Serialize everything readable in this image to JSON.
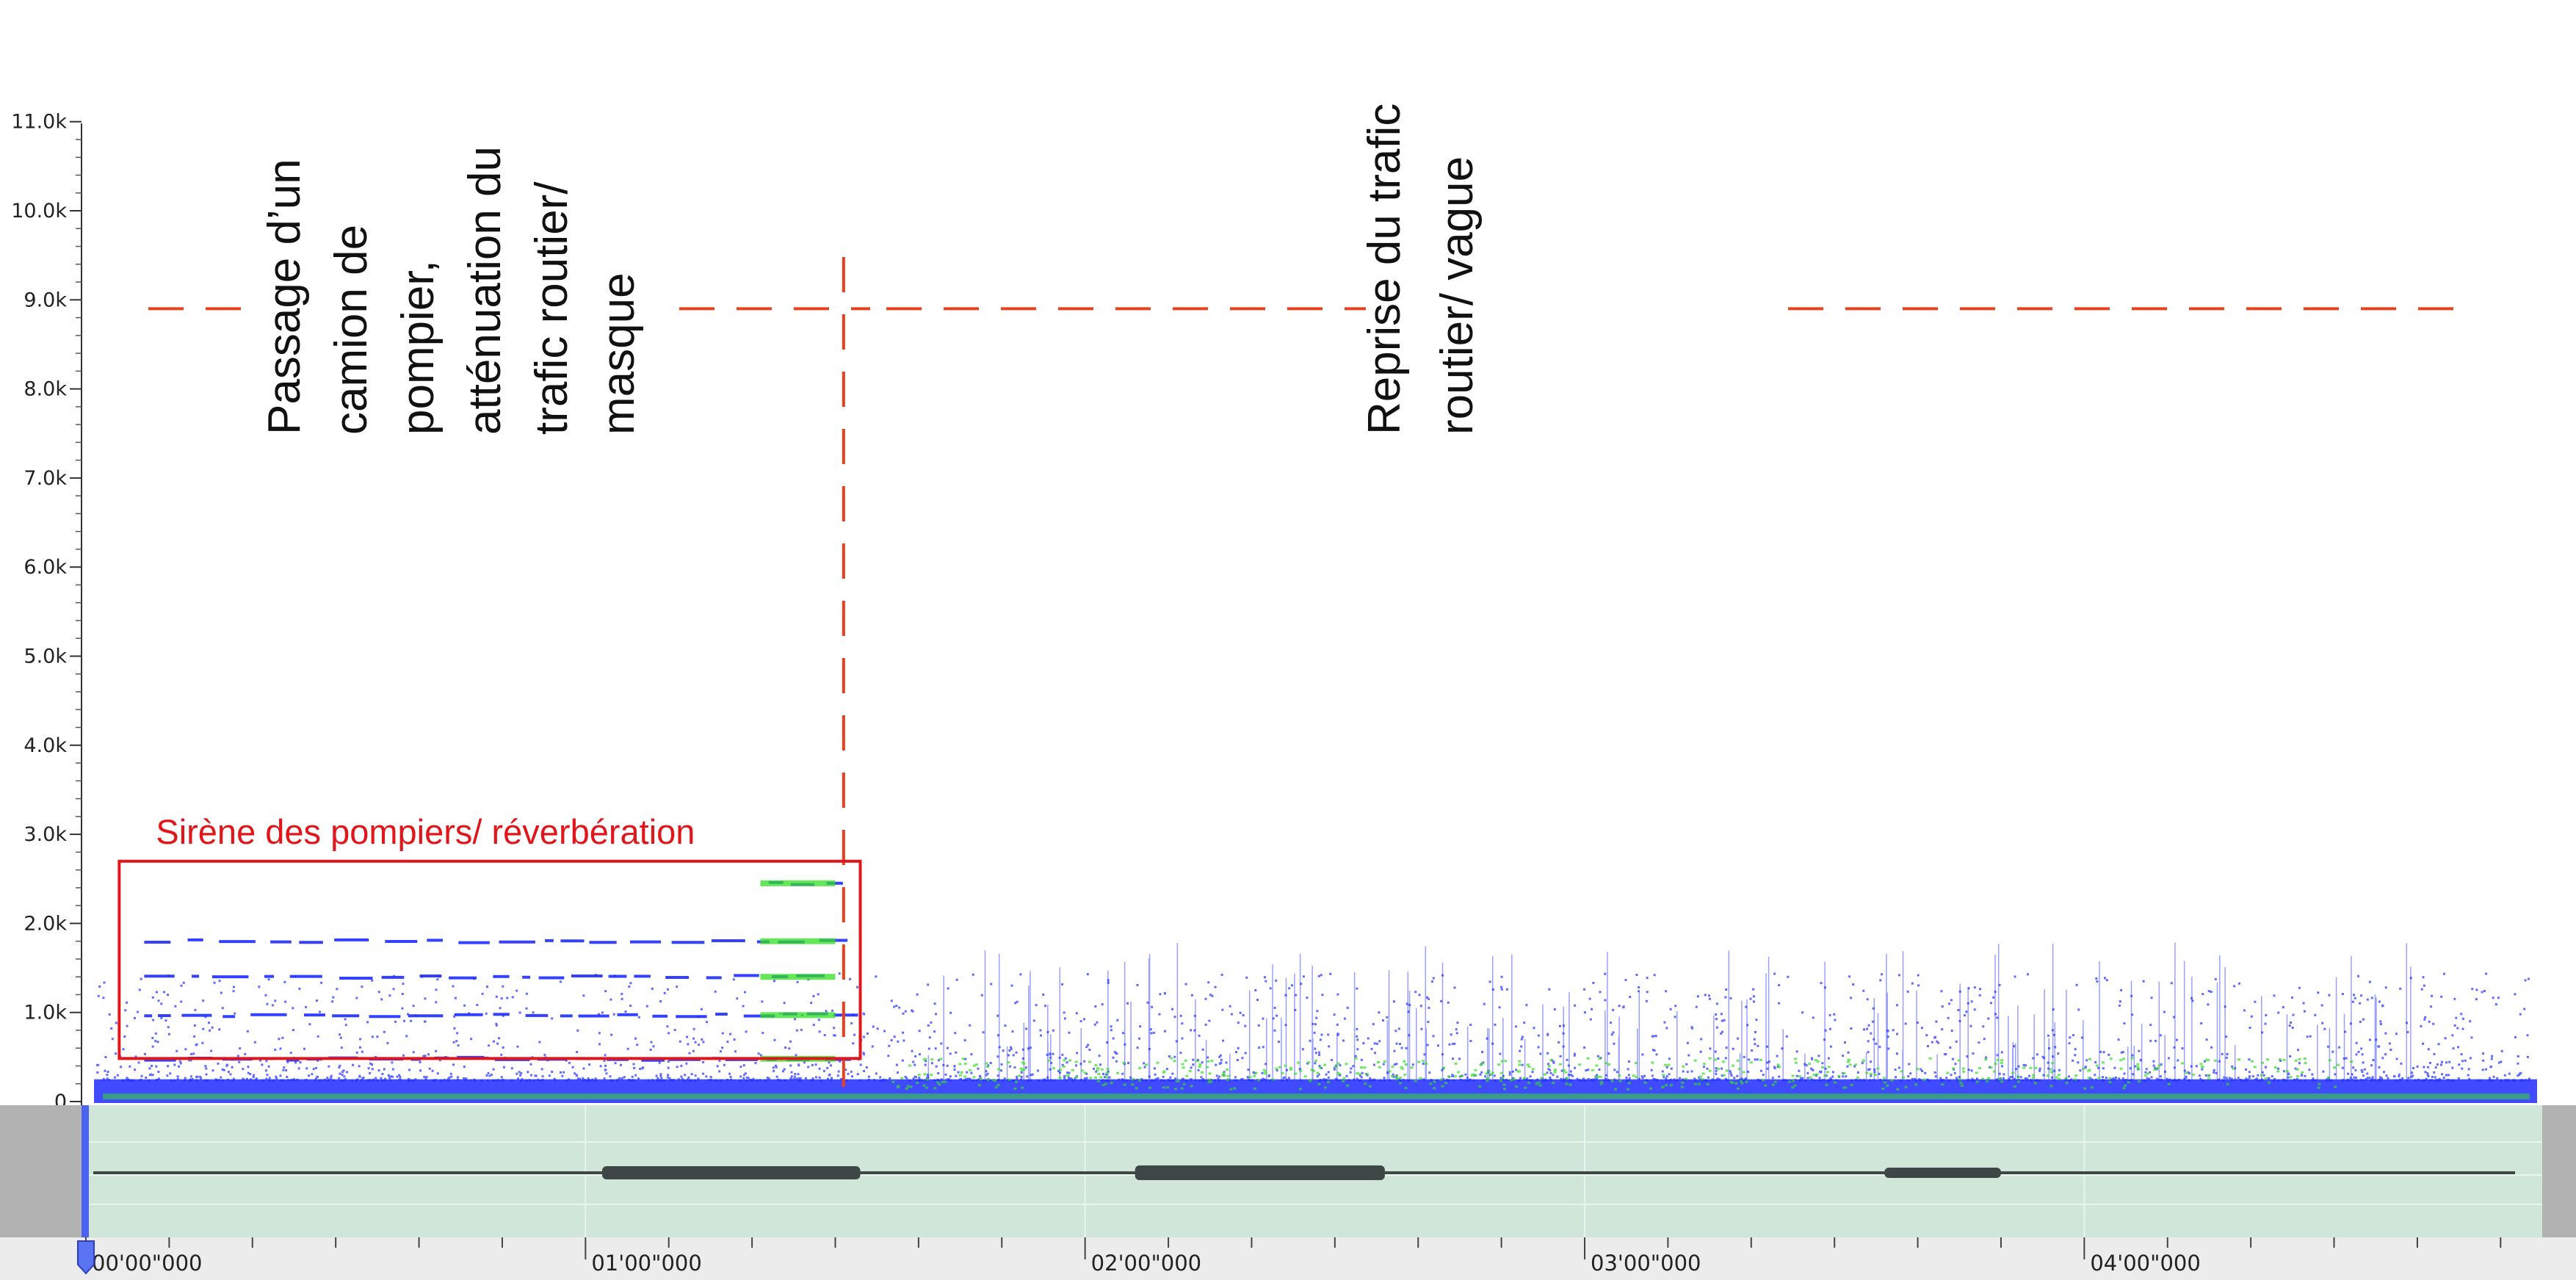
{
  "chart_data": {
    "type": "heatmap",
    "subtype": "spectrogram",
    "y_axis": {
      "ticks": [
        0,
        1000,
        2000,
        3000,
        4000,
        5000,
        6000,
        7000,
        8000,
        9000,
        10000,
        11000
      ],
      "tick_labels": [
        "0",
        "1.0k",
        "2.0k",
        "3.0k",
        "4.0k",
        "5.0k",
        "6.0k",
        "7.0k",
        "8.0k",
        "9.0k",
        "10.0k",
        "11.0k"
      ],
      "ylim": [
        0,
        11000
      ]
    },
    "x_axis": {
      "unit": "seconds",
      "xlim": [
        0,
        300
      ],
      "ticks": [
        0,
        60,
        120,
        180,
        240
      ],
      "tick_labels": [
        "00'00\"000",
        "01'00\"000",
        "02'00\"000",
        "03'00\"000",
        "04'00\"000"
      ]
    },
    "siren_harmonics_hz": [
      480,
      970,
      1400,
      1800,
      2450
    ],
    "threshold_line_hz": 8900,
    "marker_time_s": 91,
    "annotations": [
      {
        "text_lines": [
          "Passage d’un",
          "camion de",
          "pompier,",
          "atténuation du",
          "trafic routier/",
          "masque"
        ],
        "color": "#111111"
      },
      {
        "text_lines": [
          "Reprise du trafic",
          "routier/ vague"
        ],
        "color": "#111111"
      }
    ],
    "box_annotation": {
      "label": "Sirène des pompiers/ réverbération",
      "time_range_s": [
        4,
        93
      ],
      "freq_range_hz": [
        500,
        2500
      ]
    },
    "colors": {
      "annotation_red": "#e8411e",
      "box_red": "#e0161b",
      "spectro_blue": "#1e2cff",
      "spectro_green": "#33dd22",
      "waveform_bg": "#cfe6d9",
      "panel_gray": "#b2b2b2"
    }
  }
}
